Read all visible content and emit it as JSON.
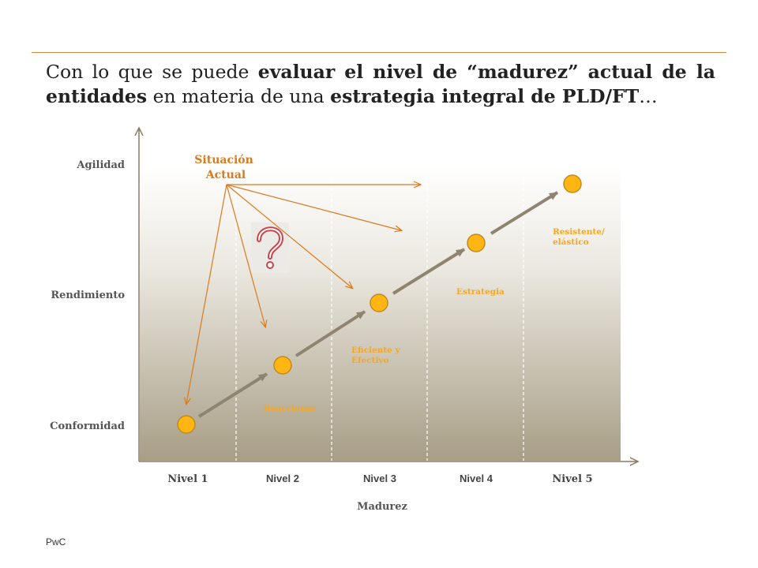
{
  "title": {
    "part1": "Con lo que se puede ",
    "bold1": "evaluar el nivel de “madurez” actual de la entidades",
    "part2": " en materia de una ",
    "bold2": "estrategia integral de PLD/FT",
    "part3": "…"
  },
  "diagram": {
    "y_labels": [
      "Agilidad",
      "Rendimiento",
      "Conformidad"
    ],
    "x_labels": [
      "Nivel 1",
      "Nivel 2",
      "Nivel 3",
      "Nivel 4",
      "Nivel 5"
    ],
    "x_axis_title": "Madurez",
    "current_situation": "Situación Actual",
    "current_situation_lines": [
      "Situación",
      "Actual"
    ],
    "stage_labels": [
      {
        "lines": [
          "Reaccionar"
        ]
      },
      {
        "lines": [
          "Eficiente y",
          "Efectivo"
        ]
      },
      {
        "lines": [
          "Estrategia"
        ]
      },
      {
        "lines": [
          "Resistente/",
          "elástico"
        ]
      }
    ],
    "question_icon": "question-mark-icon"
  },
  "colors": {
    "accent": "#d97a1e",
    "node_fill": "#ffb612",
    "node_stroke": "#c08a20",
    "axis": "#8a7c64",
    "gradient_top": "#ffffff",
    "gradient_bottom": "#a89e86",
    "stage_label": "#f5a623"
  },
  "footer": "PwC"
}
